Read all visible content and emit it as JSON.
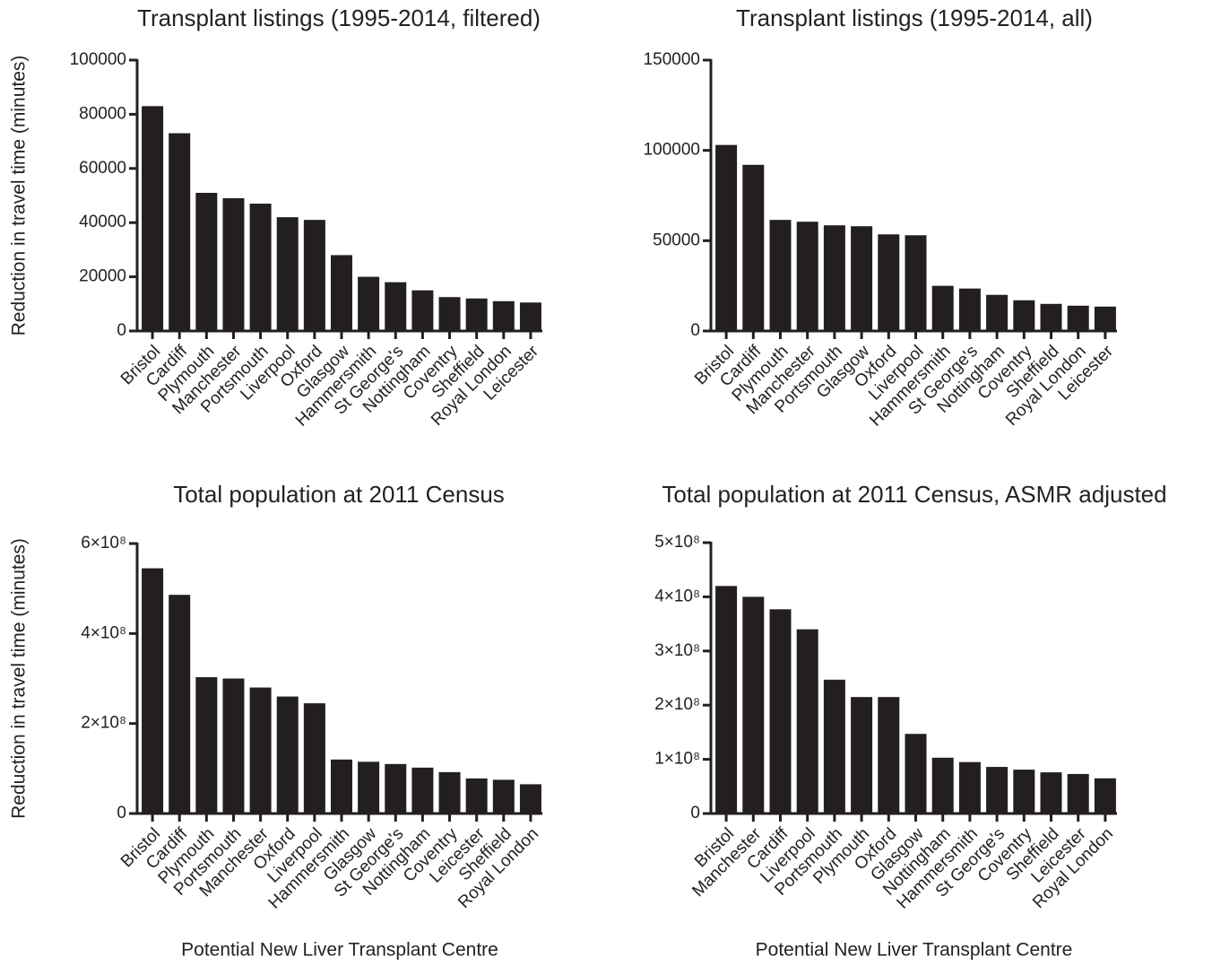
{
  "chart_data": [
    {
      "type": "bar",
      "title": "Transplant listings (1995-2014, filtered)",
      "y_label": "Reduction in travel time (minutes)",
      "categories": [
        "Bristol",
        "Cardiff",
        "Plymouth",
        "Manchester",
        "Portsmouth",
        "Liverpool",
        "Oxford",
        "Glasgow",
        "Hammersmith",
        "St George's",
        "Nottingham",
        "Coventry",
        "Sheffield",
        "Royal London",
        "Leicester"
      ],
      "values": [
        83000,
        73000,
        51000,
        49000,
        47000,
        42000,
        41000,
        28000,
        20000,
        18000,
        15000,
        12500,
        12000,
        11000,
        10500
      ],
      "color": "#231f20",
      "ylim": [
        0,
        100000
      ],
      "yticks": [
        0,
        20000,
        40000,
        60000,
        80000,
        100000
      ]
    },
    {
      "type": "bar",
      "title": "Transplant listings (1995-2014, all)",
      "categories": [
        "Bristol",
        "Cardiff",
        "Plymouth",
        "Manchester",
        "Portsmouth",
        "Glasgow",
        "Oxford",
        "Liverpool",
        "Hammersmith",
        "St George's",
        "Nottingham",
        "Coventry",
        "Sheffield",
        "Royal London",
        "Leicester"
      ],
      "values": [
        103000,
        92000,
        61500,
        60500,
        58500,
        58000,
        53500,
        53000,
        25000,
        23500,
        20000,
        17000,
        15000,
        14000,
        13500
      ],
      "color": "#231f20",
      "ylim": [
        0,
        150000
      ],
      "yticks": [
        0,
        50000,
        100000,
        150000
      ]
    },
    {
      "type": "bar",
      "title": "Total population at 2011 Census",
      "y_label": "Reduction in travel time (minutes)",
      "x_label": "Potential New Liver Transplant Centre",
      "categories": [
        "Bristol",
        "Cardiff",
        "Plymouth",
        "Portsmouth",
        "Manchester",
        "Oxford",
        "Liverpool",
        "Hammersmith",
        "Glasgow",
        "St George's",
        "Nottingham",
        "Coventry",
        "Leicester",
        "Sheffield",
        "Royal London"
      ],
      "values": [
        545000000,
        486000000,
        303000000,
        300000000,
        280000000,
        260000000,
        245000000,
        120000000,
        115000000,
        110000000,
        102000000,
        92000000,
        78000000,
        75000000,
        65000000
      ],
      "color": "#231f20",
      "ylim": [
        0,
        600000000
      ],
      "yticks": [
        0,
        {
          "value": 200000000,
          "label": "2×10⁸"
        },
        {
          "value": 400000000,
          "label": "4×10⁸"
        },
        {
          "value": 600000000,
          "label": "6×10⁸"
        }
      ]
    },
    {
      "type": "bar",
      "title": "Total population at 2011 Census, ASMR adjusted",
      "x_label": "Potential New Liver Transplant Centre",
      "categories": [
        "Bristol",
        "Manchester",
        "Cardiff",
        "Liverpool",
        "Portsmouth",
        "Plymouth",
        "Oxford",
        "Glasgow",
        "Nottingham",
        "Hammersmith",
        "St George's",
        "Coventry",
        "Sheffield",
        "Leicester",
        "Royal London"
      ],
      "values": [
        420000000,
        400000000,
        377000000,
        340000000,
        247000000,
        215000000,
        215000000,
        147000000,
        103000000,
        95000000,
        86000000,
        81000000,
        76000000,
        73000000,
        65000000
      ],
      "color": "#231f20",
      "ylim": [
        0,
        500000000
      ],
      "yticks": [
        0,
        {
          "value": 100000000,
          "label": "1×10⁸"
        },
        {
          "value": 200000000,
          "label": "2×10⁸"
        },
        {
          "value": 300000000,
          "label": "3×10⁸"
        },
        {
          "value": 400000000,
          "label": "4×10⁸"
        },
        {
          "value": 500000000,
          "label": "5×10⁸"
        }
      ]
    }
  ]
}
